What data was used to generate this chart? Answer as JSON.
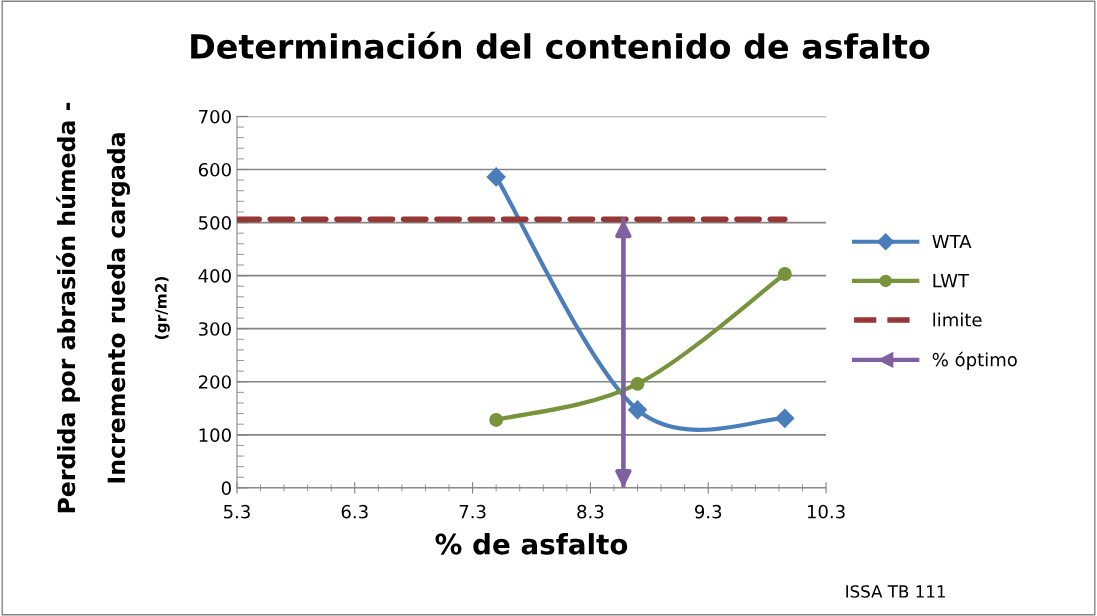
{
  "chart_data": {
    "type": "line",
    "title": "Determinación del contenido de asfalto",
    "xlabel": "% de asfalto",
    "ylabel": "Perdida por abrasión húmeda -\nIncremento rueda cargada\n(gr/m2)",
    "xlim": [
      5.3,
      10.3
    ],
    "xticks": [
      5.3,
      6.3,
      7.3,
      8.3,
      9.3,
      10.3
    ],
    "ylim": [
      0,
      700
    ],
    "yticks": [
      0,
      100,
      200,
      300,
      400,
      500,
      600,
      700
    ],
    "grid": "y",
    "legend": "right",
    "series": [
      {
        "name": "WTA",
        "color": "#4a7ebb",
        "marker": "diamond",
        "line_style": "solid",
        "x": [
          7.5,
          8.7,
          9.95
        ],
        "values": [
          586,
          147,
          131
        ]
      },
      {
        "name": "LWT",
        "color": "#77933c",
        "marker": "circle",
        "line_style": "solid",
        "x": [
          7.5,
          8.7,
          9.95
        ],
        "values": [
          128,
          196,
          403
        ]
      },
      {
        "name": "limite",
        "color": "#953735",
        "marker": "none",
        "line_style": "dashed",
        "x": [
          5.3,
          9.95
        ],
        "values": [
          506,
          506
        ]
      },
      {
        "name": "% óptimo",
        "color": "#7f60a0",
        "marker": "none",
        "line_style": "solid",
        "x": [
          8.58,
          8.58
        ],
        "values": [
          506,
          0
        ]
      }
    ],
    "annotations": [
      "ISSA TB 111"
    ]
  }
}
